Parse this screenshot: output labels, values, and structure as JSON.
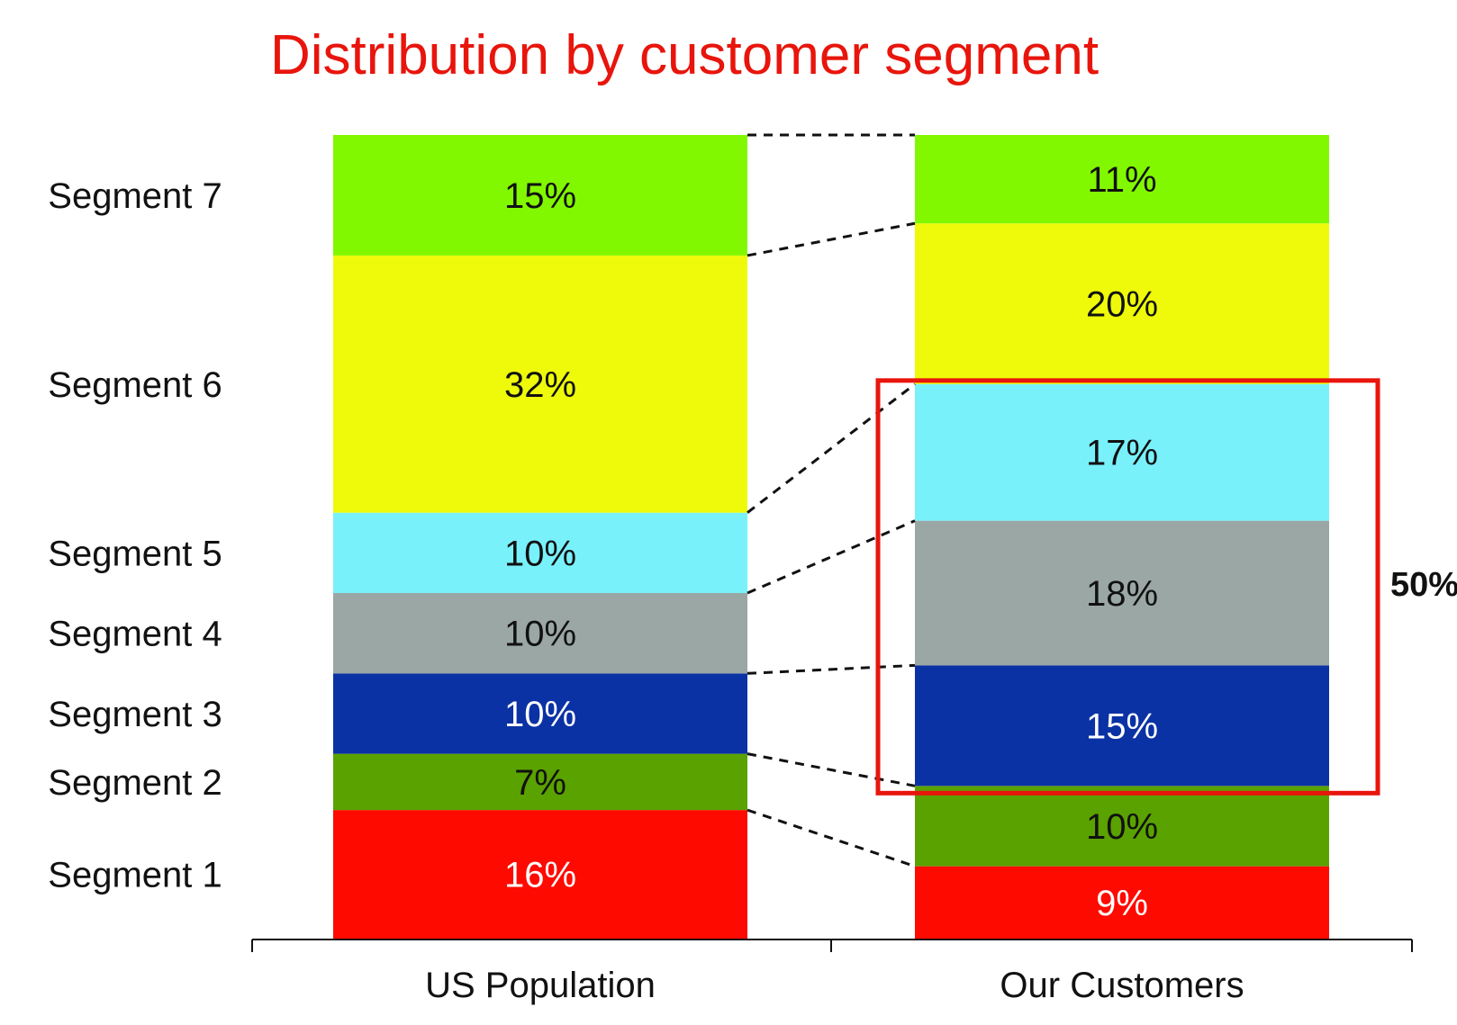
{
  "chart_data": {
    "type": "bar",
    "stacked": true,
    "title": "Distribution by customer segment",
    "categories": [
      "US Population",
      "Our Customers"
    ],
    "series": [
      {
        "name": "Segment 1",
        "values": [
          16,
          9
        ],
        "labels": [
          "16%",
          "9%"
        ],
        "color": "#ff0a00",
        "text_color": "#ffffff"
      },
      {
        "name": "Segment 2",
        "values": [
          7,
          10
        ],
        "labels": [
          "7%",
          "10%"
        ],
        "color": "#5aa200",
        "text_color": "#111111"
      },
      {
        "name": "Segment 3",
        "values": [
          10,
          15
        ],
        "labels": [
          "10%",
          "15%"
        ],
        "color": "#0b32a4",
        "text_color": "#ffffff"
      },
      {
        "name": "Segment 4",
        "values": [
          10,
          18
        ],
        "labels": [
          "10%",
          "18%"
        ],
        "color": "#9aa7a4",
        "text_color": "#111111"
      },
      {
        "name": "Segment 5",
        "values": [
          10,
          17
        ],
        "labels": [
          "10%",
          "17%"
        ],
        "color": "#79f1fa",
        "text_color": "#111111"
      },
      {
        "name": "Segment 6",
        "values": [
          32,
          20
        ],
        "labels": [
          "32%",
          "20%"
        ],
        "color": "#eefa0a",
        "text_color": "#111111"
      },
      {
        "name": "Segment 7",
        "values": [
          15,
          11
        ],
        "labels": [
          "15%",
          "11%"
        ],
        "color": "#82f800",
        "text_color": "#111111"
      }
    ],
    "highlight": {
      "category": "Our Customers",
      "series": [
        "Segment 3",
        "Segment 4",
        "Segment 5"
      ],
      "label": "50%",
      "color": "#e8150c"
    },
    "connectors": "dashed",
    "legend": "left of first bar"
  }
}
